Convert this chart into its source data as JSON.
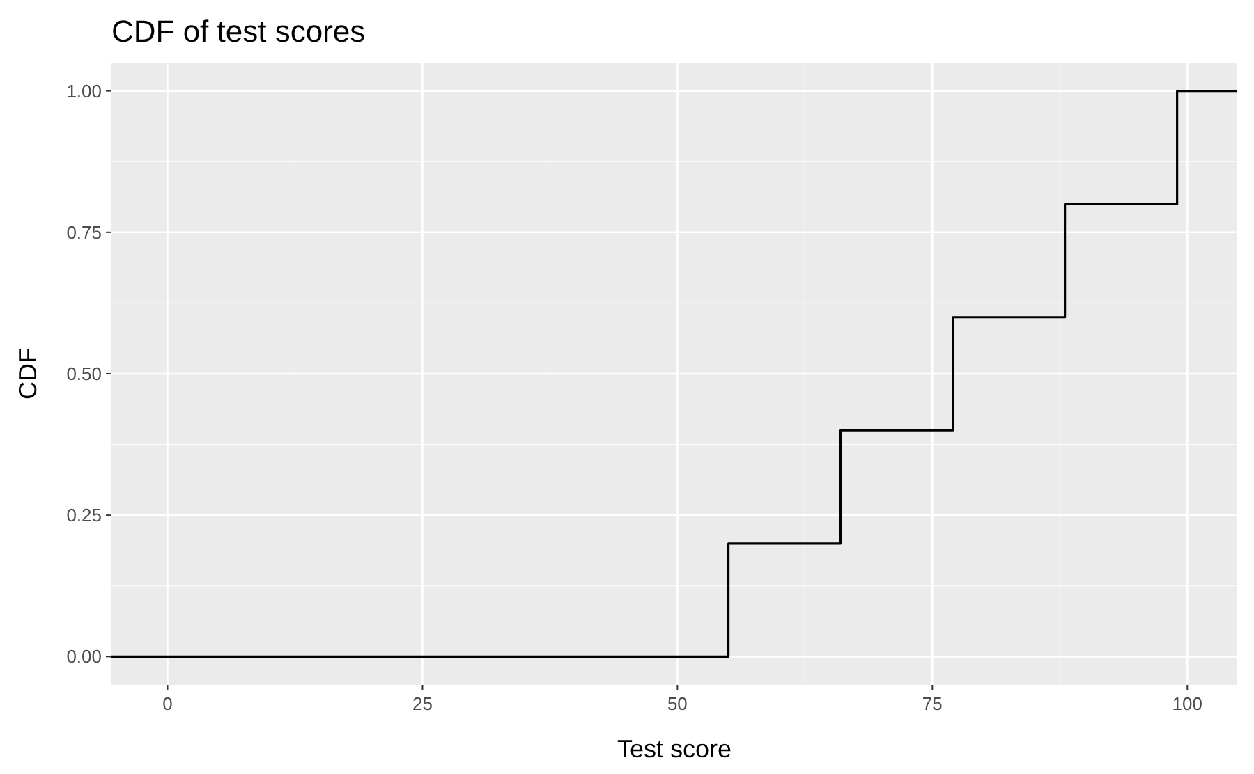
{
  "chart_data": {
    "type": "step",
    "title": "CDF of test scores",
    "xlabel": "Test score",
    "ylabel": "CDF",
    "x": [
      -5.5,
      55,
      66,
      77,
      88,
      99,
      104.9
    ],
    "series": [
      {
        "color": "#000000",
        "values": [
          0,
          0.2,
          0.4,
          0.6,
          0.8,
          1,
          1
        ]
      }
    ],
    "xlim": [
      -5.5,
      104.9
    ],
    "xticks": [
      0,
      25,
      50,
      75,
      100
    ],
    "ylim": [
      -0.05,
      1.05
    ],
    "yticks": [
      {
        "value": 0,
        "label": "0.00"
      },
      {
        "value": 0.25,
        "label": "0.25"
      },
      {
        "value": 0.5,
        "label": "0.50"
      },
      {
        "value": 0.75,
        "label": "0.75"
      },
      {
        "value": 1,
        "label": "1.00"
      }
    ],
    "grid": true
  }
}
